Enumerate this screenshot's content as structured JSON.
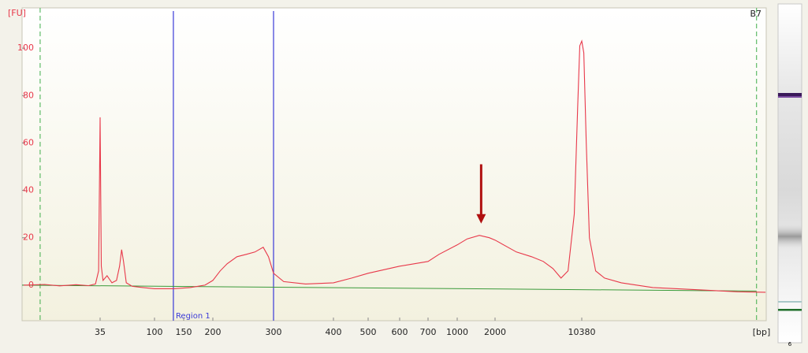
{
  "chart_data": {
    "type": "line",
    "y_label": "[FU]",
    "x_label": "[bp]",
    "sample": "B7",
    "lane_label": "6",
    "x": [
      8,
      12,
      16,
      22,
      28,
      32,
      34,
      35,
      35.8,
      37,
      40,
      44,
      48,
      51,
      53,
      55,
      58,
      65,
      80,
      100,
      130,
      160,
      185,
      200,
      210,
      220,
      235,
      250,
      265,
      280,
      290,
      300,
      315,
      350,
      400,
      450,
      500,
      600,
      700,
      800,
      1000,
      1200,
      1500,
      1800,
      2000,
      3000,
      4000,
      5000,
      6000,
      7000,
      8000,
      9000,
      9600,
      10000,
      10380,
      10800,
      11300,
      12000,
      13500,
      16000,
      22000,
      40000,
      100000,
      200000,
      340000
    ],
    "values": [
      0,
      0.3,
      -0.3,
      0.2,
      -0.2,
      0.5,
      6,
      70.8,
      8,
      2,
      4,
      1,
      2,
      8,
      15,
      10,
      1,
      -0.5,
      -1,
      -1.5,
      -1.5,
      -1,
      0,
      2,
      6,
      9,
      12,
      13,
      14,
      16,
      12,
      5,
      1.5,
      0.5,
      1,
      3,
      5,
      8,
      10,
      13,
      17,
      19.5,
      21,
      20,
      19,
      14,
      12,
      10,
      7,
      3,
      6,
      30,
      75,
      101,
      103,
      98,
      60,
      20,
      6,
      3,
      1,
      -1,
      -2,
      -2.8,
      -3
    ],
    "color": "#e8384a",
    "xlim": [
      8,
      340000
    ],
    "ylim": [
      -15,
      117
    ],
    "xticks": [
      35,
      100,
      150,
      200,
      300,
      400,
      500,
      600,
      700,
      1000,
      2000,
      10380
    ],
    "yticks": [
      0,
      20,
      40,
      60,
      80,
      100
    ],
    "regions": [
      {
        "name": "Region 1",
        "range": [
          130,
          300
        ],
        "color": "#3a3ad8"
      }
    ],
    "marker_lines": {
      "values": [
        11,
        287000
      ],
      "color": "#3fae4a"
    },
    "baseline": {
      "values": [
        0,
        -2.5
      ],
      "color": "#3a9a3a"
    },
    "annotations": [
      {
        "type": "arrow",
        "x": 1550,
        "y": [
          51,
          26
        ],
        "color": "#b01010"
      }
    ]
  }
}
